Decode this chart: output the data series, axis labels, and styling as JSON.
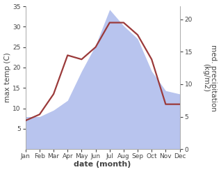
{
  "months": [
    "Jan",
    "Feb",
    "Mar",
    "Apr",
    "May",
    "Jun",
    "Jul",
    "Aug",
    "Sep",
    "Oct",
    "Nov",
    "Dec"
  ],
  "month_x": [
    1,
    2,
    3,
    4,
    5,
    6,
    7,
    8,
    9,
    10,
    11,
    12
  ],
  "temperature": [
    7.0,
    8.5,
    13.5,
    23.0,
    22.0,
    25.0,
    31.0,
    31.0,
    28.0,
    22.0,
    11.0,
    11.0
  ],
  "precipitation": [
    5.0,
    5.0,
    6.0,
    7.5,
    12.0,
    16.0,
    21.5,
    19.0,
    17.0,
    12.0,
    9.0,
    8.5
  ],
  "temp_color": "#9b3a3a",
  "precip_fill_color": "#b8c4ee",
  "temp_ylim": [
    0,
    35
  ],
  "precip_ylim": [
    0,
    22
  ],
  "temp_yticks": [
    5,
    10,
    15,
    20,
    25,
    30,
    35
  ],
  "precip_yticks": [
    0,
    5,
    10,
    15,
    20
  ],
  "ylabel_left": "max temp (C)",
  "ylabel_right": "med. precipitation\n(kg/m2)",
  "xlabel": "date (month)",
  "bg_color": "#ffffff",
  "label_fontsize": 7.5,
  "tick_fontsize": 6.5,
  "xlabel_fontsize": 8
}
